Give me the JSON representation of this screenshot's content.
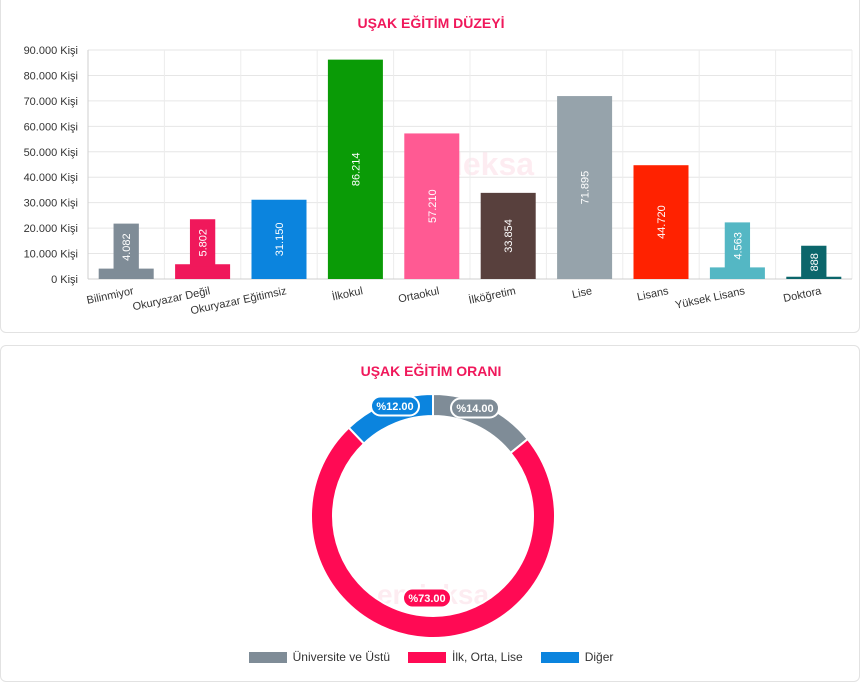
{
  "chart_data": [
    {
      "type": "bar",
      "title": "UŞAK EĞİTİM DÜZEYİ",
      "categories": [
        "Bilinmiyor",
        "Okuryazar Değil",
        "Okuryazar Eğitimsiz",
        "İlkokul",
        "Ortaokul",
        "İlköğretim",
        "Lise",
        "Lisans",
        "Yüksek Lisans",
        "Doktora"
      ],
      "values": [
        4082,
        5802,
        31150,
        86214,
        57210,
        33854,
        71895,
        44720,
        4563,
        888
      ],
      "value_labels": [
        "4.082",
        "5.802",
        "31.150",
        "86.214",
        "57.210",
        "33.854",
        "71.895",
        "44.720",
        "4.563",
        "888"
      ],
      "colors": [
        "#7f8c97",
        "#f0185b",
        "#0b84de",
        "#0a9b06",
        "#ff5a93",
        "#58403d",
        "#96a3ab",
        "#ff2200",
        "#54b7c4",
        "#0b666b"
      ],
      "ylim": [
        0,
        90000
      ],
      "yticks": [
        "0 Kişi",
        "10.000 Kişi",
        "20.000 Kişi",
        "30.000 Kişi",
        "40.000 Kişi",
        "50.000 Kişi",
        "60.000 Kişi",
        "70.000 Kişi",
        "80.000 Kişi",
        "90.000 Kişi"
      ],
      "grid": true,
      "watermark": "endeksa"
    },
    {
      "type": "pie",
      "title": "UŞAK EĞİTİM ORANI",
      "labels": [
        "Üniversite ve Üstü",
        "İlk, Orta, Lise",
        "Diğer"
      ],
      "values": [
        14,
        73,
        12
      ],
      "value_labels": [
        "%14.00",
        "%73.00",
        "%12.00"
      ],
      "colors": [
        "#7f8c97",
        "#ff0a54",
        "#0b84de"
      ],
      "legend": "bottom",
      "watermark": "endeksa"
    }
  ]
}
